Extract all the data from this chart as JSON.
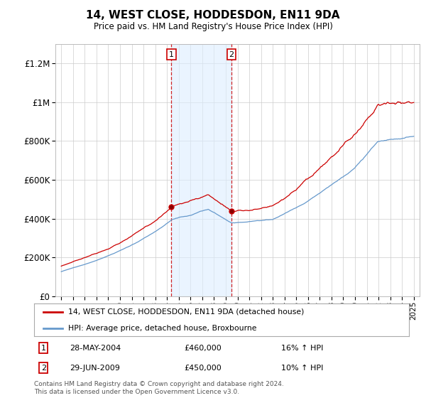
{
  "title": "14, WEST CLOSE, HODDESDON, EN11 9DA",
  "subtitle": "Price paid vs. HM Land Registry's House Price Index (HPI)",
  "bg_color": "#ffffff",
  "plot_bg_color": "#ffffff",
  "grid_color": "#cccccc",
  "legend_line1": "14, WEST CLOSE, HODDESDON, EN11 9DA (detached house)",
  "legend_line2": "HPI: Average price, detached house, Broxbourne",
  "transaction1_date": "28-MAY-2004",
  "transaction1_price": "£460,000",
  "transaction1_hpi": "16% ↑ HPI",
  "transaction2_date": "29-JUN-2009",
  "transaction2_price": "£450,000",
  "transaction2_hpi": "10% ↑ HPI",
  "footer": "Contains HM Land Registry data © Crown copyright and database right 2024.\nThis data is licensed under the Open Government Licence v3.0.",
  "red_color": "#cc0000",
  "blue_color": "#6699cc",
  "shade_color": "#ddeeff",
  "vline_color": "#cc0000",
  "transaction1_x": 2004.38,
  "transaction2_x": 2009.49,
  "ylim_max": 1300000,
  "xlim_min": 1994.5,
  "xlim_max": 2025.5
}
